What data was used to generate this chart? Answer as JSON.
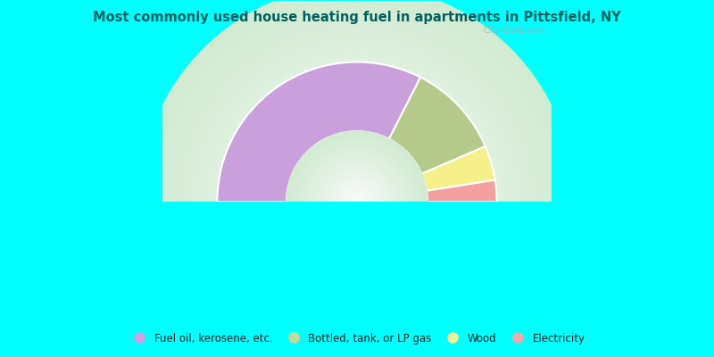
{
  "title": "Most commonly used house heating fuel in apartments in Pittsfield, NY",
  "title_color": "#006060",
  "background_color": "#00FFFF",
  "slices": [
    {
      "label": "Fuel oil, kerosene, etc.",
      "value": 0.65,
      "color": "#c9a0dc"
    },
    {
      "label": "Bottled, tank, or LP gas",
      "value": 0.22,
      "color": "#b5c98a"
    },
    {
      "label": "Wood",
      "value": 0.08,
      "color": "#f5f08a"
    },
    {
      "label": "Electricity",
      "value": 0.05,
      "color": "#f4a0a0"
    }
  ],
  "legend_colors": [
    "#d4a0e0",
    "#c8d898",
    "#f0f090",
    "#f8a8a8"
  ],
  "watermark": "City-Data.com",
  "outer_r": 1.15,
  "inner_r": 0.58
}
